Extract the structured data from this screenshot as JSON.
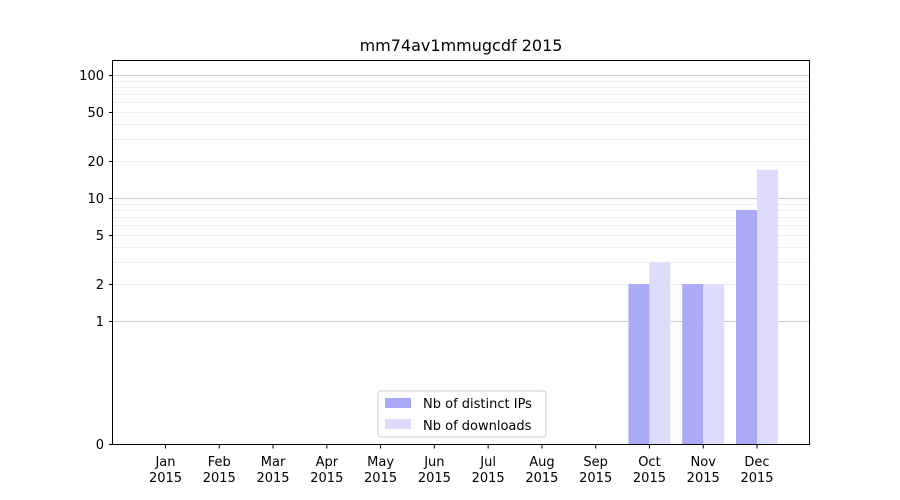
{
  "chart_data": {
    "type": "bar",
    "title": "mm74av1mmugcdf 2015",
    "xlabel": "",
    "ylabel": "",
    "scale": "symlog",
    "ylim": [
      0,
      130
    ],
    "categories": [
      [
        "Jan",
        "2015"
      ],
      [
        "Feb",
        "2015"
      ],
      [
        "Mar",
        "2015"
      ],
      [
        "Apr",
        "2015"
      ],
      [
        "May",
        "2015"
      ],
      [
        "Jun",
        "2015"
      ],
      [
        "Jul",
        "2015"
      ],
      [
        "Aug",
        "2015"
      ],
      [
        "Sep",
        "2015"
      ],
      [
        "Oct",
        "2015"
      ],
      [
        "Nov",
        "2015"
      ],
      [
        "Dec",
        "2015"
      ]
    ],
    "series": [
      {
        "name": "Nb of distinct IPs",
        "color": "#aaaaf8",
        "values": [
          0,
          0,
          0,
          0,
          0,
          0,
          0,
          0,
          0,
          2,
          2,
          8
        ]
      },
      {
        "name": "Nb of downloads",
        "color": "#ddddfb",
        "values": [
          0,
          0,
          0,
          0,
          0,
          0,
          0,
          0,
          0,
          3,
          2,
          17
        ]
      }
    ],
    "yticks": [
      {
        "value": 0,
        "label": "0"
      },
      {
        "value": 1,
        "label": "1"
      },
      {
        "value": 2,
        "label": "2"
      },
      {
        "value": 5,
        "label": "5"
      },
      {
        "value": 10,
        "label": "10"
      },
      {
        "value": 20,
        "label": "20"
      },
      {
        "value": 50,
        "label": "50"
      },
      {
        "value": 100,
        "label": "100"
      }
    ],
    "major_grid": [
      1,
      10,
      100
    ],
    "minor_grid": [
      2,
      3,
      4,
      5,
      6,
      7,
      8,
      9,
      20,
      30,
      40,
      50,
      60,
      70,
      80,
      90
    ],
    "grid": true,
    "legend_position": "lower-center"
  }
}
